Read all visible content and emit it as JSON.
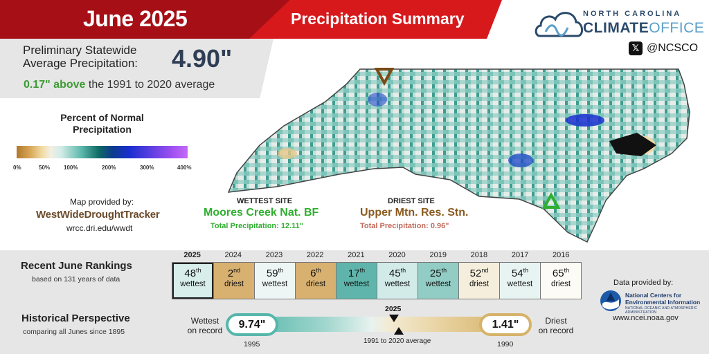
{
  "header": {
    "month": "June 2025",
    "title": "Precipitation Summary"
  },
  "average": {
    "label": "Preliminary Statewide Average Precipitation:",
    "value": "4.90\"",
    "diff_value": "0.17\" above",
    "diff_text": "the 1991 to 2020 average"
  },
  "logo": {
    "line1": "NORTH CAROLINA",
    "line2_bold": "CLIMATE",
    "line2_light": "OFFICE",
    "x_icon": "x-icon",
    "handle": "@NCSCO"
  },
  "legend": {
    "title": "Percent of Normal Precipitation",
    "ticks": [
      "0%",
      "50%",
      "100%",
      "200%",
      "300%",
      "400%"
    ]
  },
  "map_credit": {
    "label": "Map provided by:",
    "brand": "WestWideDroughtTracker",
    "url": "wrcc.dri.edu/wwdt"
  },
  "wettest": {
    "header": "WETTEST SITE",
    "name": "Moores Creek Nat. BF",
    "total": "Total Precipitation: 12.11\"",
    "color": "#2fae2f"
  },
  "driest": {
    "header": "DRIEST SITE",
    "name": "Upper Mtn. Res. Stn.",
    "total": "Total Precipitation: 0.96\"",
    "color": "#8a5a1e"
  },
  "rankings": {
    "title": "Recent June Rankings",
    "subtitle": "based on 131 years of data",
    "items": [
      {
        "year": "2025",
        "rank": "48",
        "suffix": "th",
        "label": "wettest",
        "color": "#d7eeeb"
      },
      {
        "year": "2024",
        "rank": "2",
        "suffix": "nd",
        "label": "driest",
        "color": "#d8b070"
      },
      {
        "year": "2023",
        "rank": "59",
        "suffix": "th",
        "label": "wettest",
        "color": "#eef6f5"
      },
      {
        "year": "2022",
        "rank": "6",
        "suffix": "th",
        "label": "driest",
        "color": "#d8b070"
      },
      {
        "year": "2021",
        "rank": "17",
        "suffix": "th",
        "label": "wettest",
        "color": "#5fb5ab"
      },
      {
        "year": "2020",
        "rank": "45",
        "suffix": "th",
        "label": "wettest",
        "color": "#d2ebe8"
      },
      {
        "year": "2019",
        "rank": "25",
        "suffix": "th",
        "label": "wettest",
        "color": "#92cdc5"
      },
      {
        "year": "2018",
        "rank": "52",
        "suffix": "nd",
        "label": "driest",
        "color": "#f5eedc"
      },
      {
        "year": "2017",
        "rank": "54",
        "suffix": "th",
        "label": "wettest",
        "color": "#e8f4f2"
      },
      {
        "year": "2016",
        "rank": "65",
        "suffix": "th",
        "label": "driest",
        "color": "#fdfbf6"
      }
    ]
  },
  "historical": {
    "title": "Historical Perspective",
    "subtitle": "comparing all Junes since 1895",
    "wettest_label_1": "Wettest",
    "wettest_label_2": "on record",
    "wettest_value": "9.74\"",
    "wettest_year": "1995",
    "driest_label_1": "Driest",
    "driest_label_2": "on record",
    "driest_value": "1.41\"",
    "driest_year": "1990",
    "current_year": "2025",
    "avg_label": "1991 to 2020 average"
  },
  "data_credit": {
    "label": "Data provided by:",
    "org_line1": "National Centers for",
    "org_line2": "Environmental Information",
    "org_sub": "NATIONAL OCEANIC AND ATMOSPHERIC ADMINISTRATION",
    "url": "www.ncei.noaa.gov"
  }
}
